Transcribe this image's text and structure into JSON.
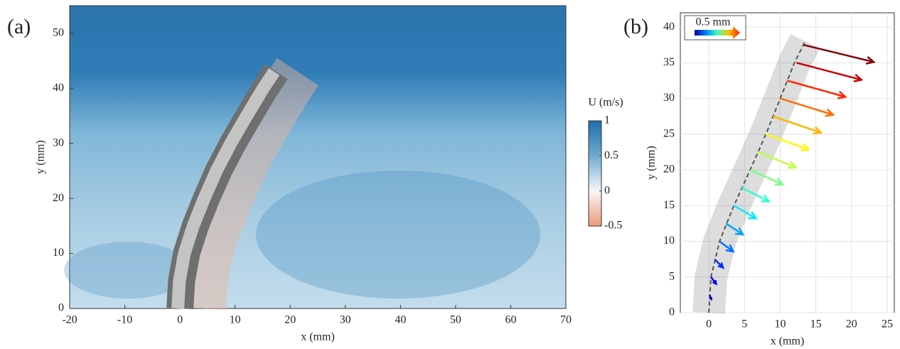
{
  "chart_data": [
    {
      "type": "field",
      "panel_label": "(a)",
      "xlabel": "x (mm)",
      "ylabel": "y (mm)",
      "xlim": [
        -20,
        70
      ],
      "ylim": [
        0,
        55
      ],
      "xticks": [
        -20,
        -10,
        0,
        10,
        20,
        30,
        40,
        50,
        60,
        70
      ],
      "yticks": [
        0,
        10,
        20,
        30,
        40,
        50
      ],
      "grid": false,
      "rod": {
        "x": [
          0,
          0.3,
          1.2,
          2.8,
          4.8,
          7,
          9.6,
          12.5,
          15.5,
          17.5
        ],
        "y": [
          0,
          5,
          10,
          15,
          20,
          25,
          30,
          35,
          40,
          43
        ]
      },
      "colorbar": {
        "label": "U (m/s)",
        "lim": [
          -0.5,
          1
        ],
        "ticks": [
          -0.5,
          0,
          0.5,
          1
        ]
      }
    },
    {
      "type": "quiver",
      "panel_label": "(b)",
      "xlabel": "x (mm)",
      "ylabel": "y (mm)",
      "xlim": [
        -4,
        26
      ],
      "ylim": [
        0,
        42
      ],
      "xticks": [
        0,
        5,
        10,
        15,
        20,
        25
      ],
      "yticks": [
        0,
        5,
        10,
        15,
        20,
        25,
        30,
        35,
        40
      ],
      "grid": true,
      "scale_label": "0.5 mm",
      "rod": {
        "x": [
          0,
          0.3,
          1.5,
          3.5,
          5.8,
          8,
          10,
          12,
          13.5
        ],
        "y": [
          0,
          5,
          10,
          15,
          20,
          25,
          30,
          35,
          38
        ]
      },
      "arrows": {
        "x": [
          0.1,
          0.3,
          0.8,
          1.5,
          2.4,
          3.5,
          4.6,
          5.8,
          6.9,
          8,
          9,
          10,
          11,
          12.3,
          13.3
        ],
        "y": [
          2.5,
          5,
          7.5,
          10,
          12.5,
          15,
          17.5,
          20,
          22.5,
          25,
          27.5,
          30,
          32.5,
          35,
          37.5
        ],
        "u": [
          0.02,
          0.06,
          0.1,
          0.16,
          0.2,
          0.26,
          0.32,
          0.38,
          0.44,
          0.5,
          0.56,
          0.62,
          0.68,
          0.76,
          0.82
        ],
        "v": [
          -0.05,
          -0.08,
          -0.1,
          -0.12,
          -0.13,
          -0.15,
          -0.16,
          -0.17,
          -0.18,
          -0.18,
          -0.19,
          -0.19,
          -0.19,
          -0.2,
          -0.2
        ]
      }
    }
  ]
}
